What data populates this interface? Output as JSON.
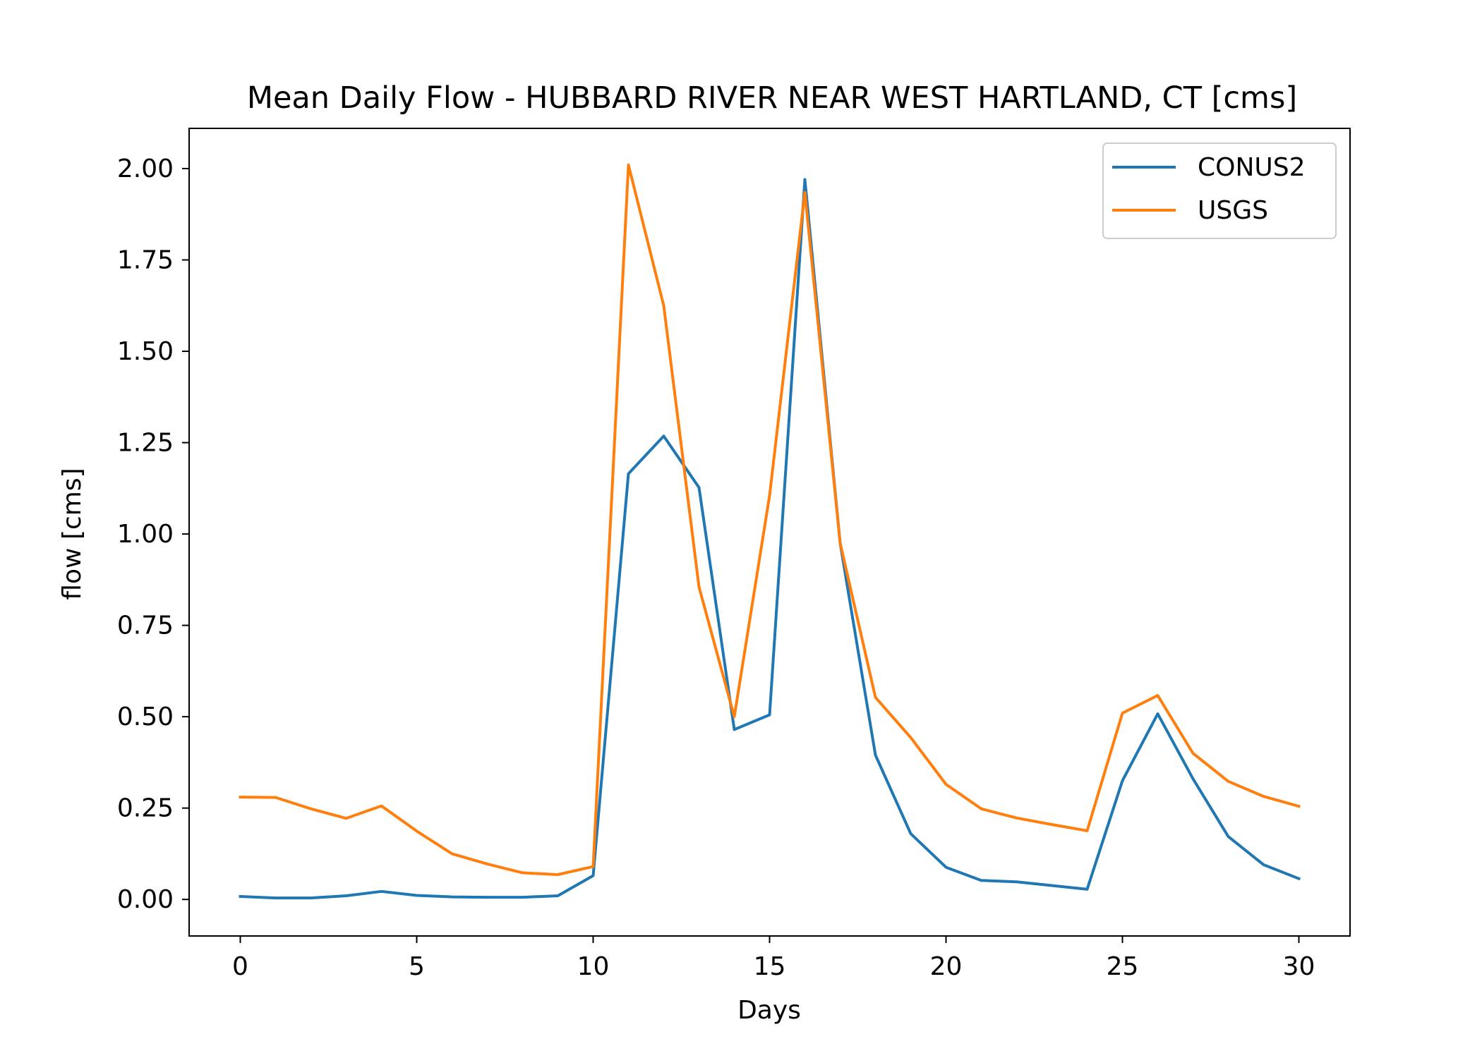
{
  "chart_data": {
    "type": "line",
    "title": "Mean Daily Flow - HUBBARD RIVER NEAR WEST HARTLAND, CT [cms]",
    "xlabel": "Days",
    "ylabel": "flow [cms]",
    "xlim": [
      -1.45,
      31.45
    ],
    "ylim": [
      -0.1,
      2.11
    ],
    "xticks": [
      0,
      5,
      10,
      15,
      20,
      25,
      30
    ],
    "xtick_labels": [
      "0",
      "5",
      "10",
      "15",
      "20",
      "25",
      "30"
    ],
    "yticks": [
      0,
      0.25,
      0.5,
      0.75,
      1.0,
      1.25,
      1.5,
      1.75,
      2.0
    ],
    "ytick_labels": [
      "0.00",
      "0.25",
      "0.50",
      "0.75",
      "1.00",
      "1.25",
      "1.50",
      "1.75",
      "2.00"
    ],
    "grid": false,
    "legend_position": "top-right",
    "x": [
      0,
      1,
      2,
      3,
      4,
      5,
      6,
      7,
      8,
      9,
      10,
      11,
      12,
      13,
      14,
      15,
      16,
      17,
      18,
      19,
      20,
      21,
      22,
      23,
      24,
      25,
      26,
      27,
      28,
      29,
      30
    ],
    "series": [
      {
        "name": "CONUS2",
        "color": "#1f77b4",
        "values": [
          0.008,
          0.004,
          0.004,
          0.01,
          0.022,
          0.011,
          0.007,
          0.006,
          0.006,
          0.01,
          0.065,
          1.165,
          1.268,
          1.127,
          0.465,
          0.505,
          1.97,
          0.975,
          0.395,
          0.18,
          0.088,
          0.052,
          0.048,
          0.038,
          0.028,
          0.325,
          0.508,
          0.33,
          0.172,
          0.095,
          0.057
        ]
      },
      {
        "name": "USGS",
        "color": "#ff7f0e",
        "values": [
          0.28,
          0.279,
          0.248,
          0.222,
          0.256,
          0.187,
          0.125,
          0.097,
          0.073,
          0.068,
          0.09,
          2.01,
          1.625,
          0.855,
          0.5,
          1.105,
          1.935,
          0.975,
          0.553,
          0.443,
          0.315,
          0.248,
          0.223,
          0.205,
          0.188,
          0.51,
          0.558,
          0.4,
          0.323,
          0.282,
          0.255
        ]
      }
    ]
  }
}
